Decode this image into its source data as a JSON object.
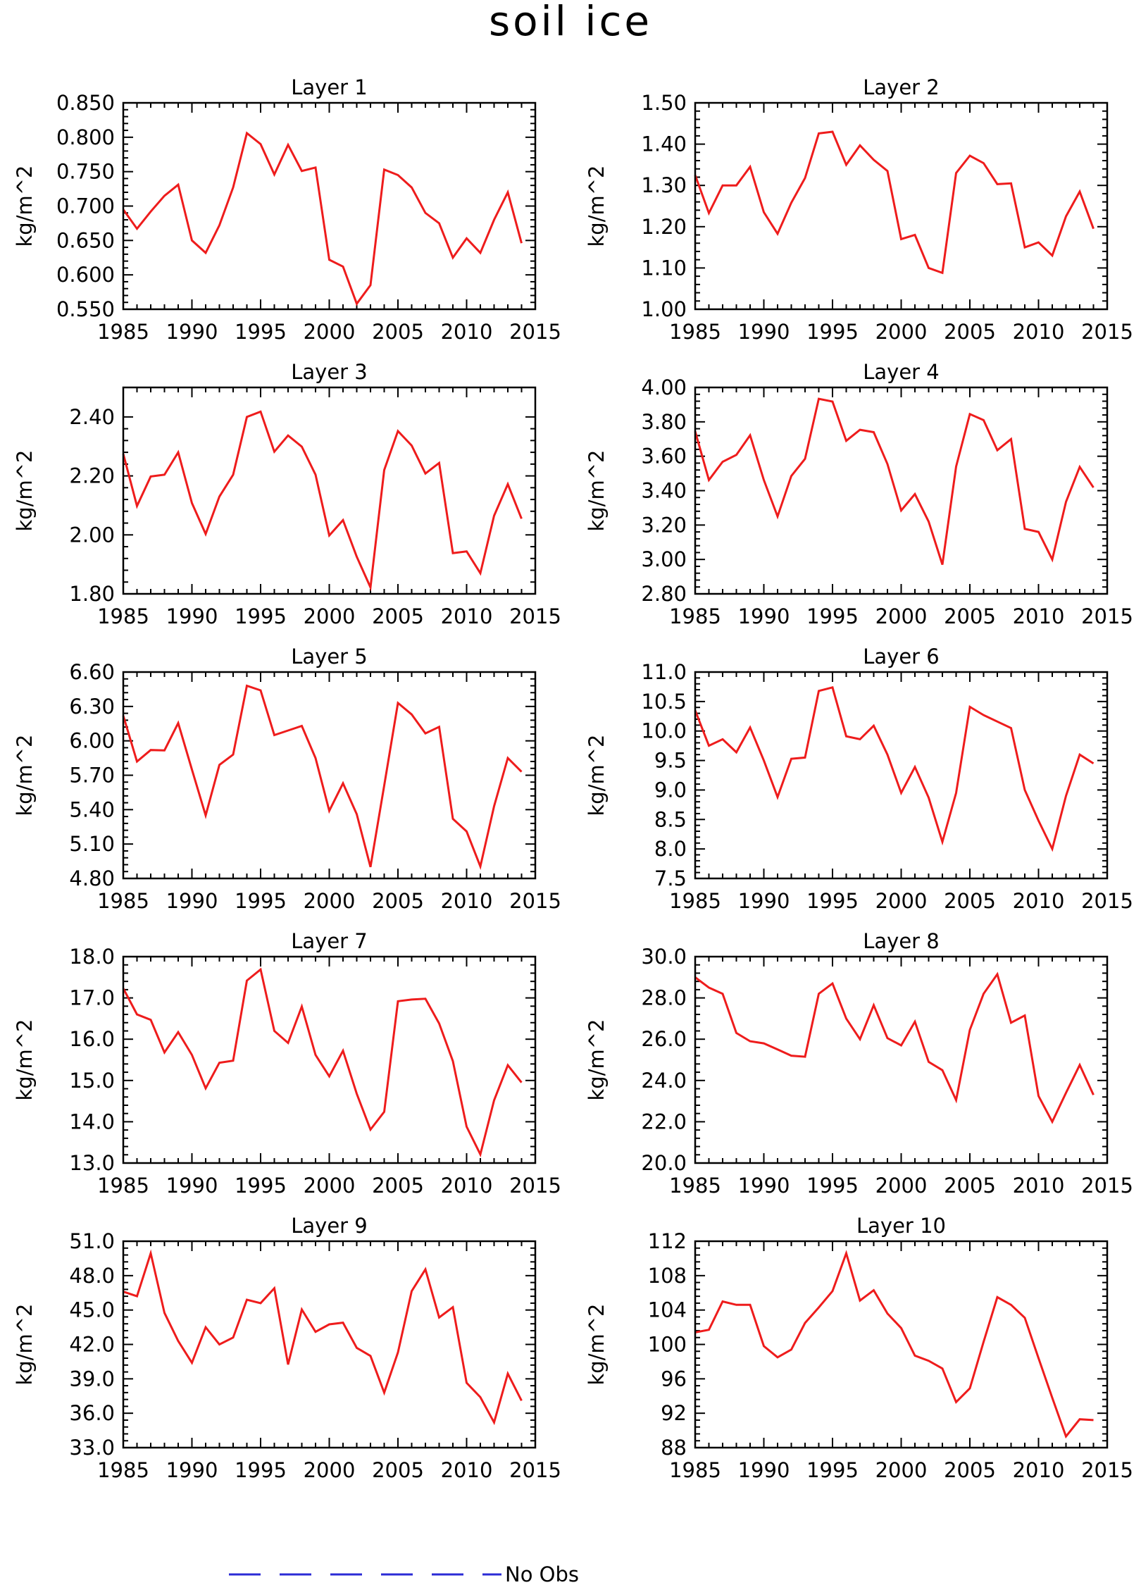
{
  "figure": {
    "title": "soil ice"
  },
  "legend": {
    "label": "No Obs",
    "line_color": "#2b2bd6",
    "line_style": "dashed"
  },
  "style": {
    "series_color": "#ee1c1c"
  },
  "chart_data": [
    {
      "type": "line",
      "title": "Layer 1",
      "ylabel": "kg/m^2",
      "xlim": [
        1985,
        2015
      ],
      "ylim": [
        0.55,
        0.85
      ],
      "xticks": [
        1985,
        1990,
        1995,
        2000,
        2005,
        2010,
        2015
      ],
      "xtick_labels": [
        "1985",
        "1990",
        "1995",
        "2000",
        "2005",
        "2010",
        "2015"
      ],
      "yticks": [
        0.55,
        0.6,
        0.65,
        0.7,
        0.75,
        0.8,
        0.85
      ],
      "ytick_labels": [
        "0.550",
        "0.600",
        "0.650",
        "0.700",
        "0.750",
        "0.800",
        "0.850"
      ],
      "x": [
        1985,
        1986,
        1987,
        1988,
        1989,
        1990,
        1991,
        1992,
        1993,
        1994,
        1995,
        1996,
        1997,
        1998,
        1999,
        2000,
        2001,
        2002,
        2003,
        2004,
        2005,
        2006,
        2007,
        2008,
        2009,
        2010,
        2011,
        2012,
        2013,
        2014
      ],
      "values": [
        0.695,
        0.667,
        0.692,
        0.715,
        0.731,
        0.65,
        0.632,
        0.672,
        0.727,
        0.806,
        0.79,
        0.746,
        0.789,
        0.751,
        0.756,
        0.622,
        0.612,
        0.558,
        0.585,
        0.753,
        0.745,
        0.727,
        0.69,
        0.675,
        0.625,
        0.653,
        0.632,
        0.68,
        0.72,
        0.646
      ]
    },
    {
      "type": "line",
      "title": "Layer 2",
      "ylabel": "kg/m^2",
      "xlim": [
        1985,
        2015
      ],
      "ylim": [
        1.0,
        1.5
      ],
      "xticks": [
        1985,
        1990,
        1995,
        2000,
        2005,
        2010,
        2015
      ],
      "xtick_labels": [
        "1985",
        "1990",
        "1995",
        "2000",
        "2005",
        "2010",
        "2015"
      ],
      "yticks": [
        1.0,
        1.1,
        1.2,
        1.3,
        1.4,
        1.5
      ],
      "ytick_labels": [
        "1.00",
        "1.10",
        "1.20",
        "1.30",
        "1.40",
        "1.50"
      ],
      "x": [
        1985,
        1986,
        1987,
        1988,
        1989,
        1990,
        1991,
        1992,
        1993,
        1994,
        1995,
        1996,
        1997,
        1998,
        1999,
        2000,
        2001,
        2002,
        2003,
        2004,
        2005,
        2006,
        2007,
        2008,
        2009,
        2010,
        2011,
        2012,
        2013,
        2014
      ],
      "values": [
        1.325,
        1.233,
        1.3,
        1.3,
        1.345,
        1.235,
        1.183,
        1.258,
        1.318,
        1.426,
        1.43,
        1.35,
        1.397,
        1.362,
        1.335,
        1.17,
        1.18,
        1.1,
        1.088,
        1.33,
        1.372,
        1.354,
        1.303,
        1.305,
        1.15,
        1.162,
        1.13,
        1.225,
        1.285,
        1.195
      ]
    },
    {
      "type": "line",
      "title": "Layer 3",
      "ylabel": "kg/m^2",
      "xlim": [
        1985,
        2015
      ],
      "ylim": [
        1.8,
        2.5
      ],
      "xticks": [
        1985,
        1990,
        1995,
        2000,
        2005,
        2010,
        2015
      ],
      "xtick_labels": [
        "1985",
        "1990",
        "1995",
        "2000",
        "2005",
        "2010",
        "2015"
      ],
      "yticks": [
        1.8,
        2.0,
        2.2,
        2.4
      ],
      "ytick_labels": [
        "1.80",
        "2.00",
        "2.20",
        "2.40"
      ],
      "x": [
        1985,
        1986,
        1987,
        1988,
        1989,
        1990,
        1991,
        1992,
        1993,
        1994,
        1995,
        1996,
        1997,
        1998,
        1999,
        2000,
        2001,
        2002,
        2003,
        2004,
        2005,
        2006,
        2007,
        2008,
        2009,
        2010,
        2011,
        2012,
        2013,
        2014
      ],
      "values": [
        2.275,
        2.098,
        2.198,
        2.204,
        2.28,
        2.108,
        2.003,
        2.13,
        2.204,
        2.4,
        2.418,
        2.282,
        2.337,
        2.299,
        2.204,
        1.998,
        2.05,
        1.926,
        1.822,
        2.22,
        2.352,
        2.303,
        2.208,
        2.244,
        1.938,
        1.944,
        1.87,
        2.065,
        2.172,
        2.055
      ]
    },
    {
      "type": "line",
      "title": "Layer 4",
      "ylabel": "kg/m^2",
      "xlim": [
        1985,
        2015
      ],
      "ylim": [
        2.8,
        4.0
      ],
      "xticks": [
        1985,
        1990,
        1995,
        2000,
        2005,
        2010,
        2015
      ],
      "xtick_labels": [
        "1985",
        "1990",
        "1995",
        "2000",
        "2005",
        "2010",
        "2015"
      ],
      "yticks": [
        2.8,
        3.0,
        3.2,
        3.4,
        3.6,
        3.8,
        4.0
      ],
      "ytick_labels": [
        "2.80",
        "3.00",
        "3.20",
        "3.40",
        "3.60",
        "3.80",
        "4.00"
      ],
      "x": [
        1985,
        1986,
        1987,
        1988,
        1989,
        1990,
        1991,
        1992,
        1993,
        1994,
        1995,
        1996,
        1997,
        1998,
        1999,
        2000,
        2001,
        2002,
        2003,
        2004,
        2005,
        2006,
        2007,
        2008,
        2009,
        2010,
        2011,
        2012,
        2013,
        2014
      ],
      "values": [
        3.745,
        3.462,
        3.568,
        3.608,
        3.722,
        3.462,
        3.25,
        3.485,
        3.585,
        3.934,
        3.918,
        3.69,
        3.754,
        3.74,
        3.555,
        3.285,
        3.38,
        3.22,
        2.97,
        3.54,
        3.845,
        3.81,
        3.635,
        3.7,
        3.178,
        3.16,
        3.0,
        3.335,
        3.538,
        3.418
      ]
    },
    {
      "type": "line",
      "title": "Layer 5",
      "ylabel": "kg/m^2",
      "xlim": [
        1985,
        2015
      ],
      "ylim": [
        4.8,
        6.6
      ],
      "xticks": [
        1985,
        1990,
        1995,
        2000,
        2005,
        2010,
        2015
      ],
      "xtick_labels": [
        "1985",
        "1990",
        "1995",
        "2000",
        "2005",
        "2010",
        "2015"
      ],
      "yticks": [
        4.8,
        5.1,
        5.4,
        5.7,
        6.0,
        6.3,
        6.6
      ],
      "ytick_labels": [
        "4.80",
        "5.10",
        "5.40",
        "5.70",
        "6.00",
        "6.30",
        "6.60"
      ],
      "x": [
        1985,
        1986,
        1987,
        1988,
        1989,
        1990,
        1991,
        1992,
        1993,
        1994,
        1995,
        1996,
        1997,
        1998,
        1999,
        2000,
        2001,
        2002,
        2003,
        2004,
        2005,
        2006,
        2007,
        2008,
        2009,
        2010,
        2011,
        2012,
        2013,
        2014
      ],
      "values": [
        6.22,
        5.82,
        5.92,
        5.917,
        6.155,
        5.75,
        5.35,
        5.79,
        5.88,
        6.48,
        6.44,
        6.05,
        6.09,
        6.13,
        5.85,
        5.39,
        5.63,
        5.36,
        4.9,
        5.61,
        6.33,
        6.23,
        6.065,
        6.122,
        5.32,
        5.21,
        4.905,
        5.43,
        5.85,
        5.73
      ]
    },
    {
      "type": "line",
      "title": "Layer 6",
      "ylabel": "kg/m^2",
      "xlim": [
        1985,
        2015
      ],
      "ylim": [
        7.5,
        11.0
      ],
      "xticks": [
        1985,
        1990,
        1995,
        2000,
        2005,
        2010,
        2015
      ],
      "xtick_labels": [
        "1985",
        "1990",
        "1995",
        "2000",
        "2005",
        "2010",
        "2015"
      ],
      "yticks": [
        7.5,
        8.0,
        8.5,
        9.0,
        9.5,
        10.0,
        10.5,
        11.0
      ],
      "ytick_labels": [
        "7.5",
        "8.0",
        "8.5",
        "9.0",
        "9.5",
        "10.0",
        "10.5",
        "11.0"
      ],
      "x": [
        1985,
        1986,
        1987,
        1988,
        1989,
        1990,
        1991,
        1992,
        1993,
        1994,
        1995,
        1996,
        1997,
        1998,
        1999,
        2000,
        2001,
        2002,
        2003,
        2004,
        2005,
        2006,
        2007,
        2008,
        2009,
        2010,
        2011,
        2012,
        2013,
        2014
      ],
      "values": [
        10.35,
        9.75,
        9.86,
        9.64,
        10.06,
        9.5,
        8.88,
        9.53,
        9.55,
        10.68,
        10.74,
        9.91,
        9.86,
        10.09,
        9.6,
        8.95,
        9.39,
        8.87,
        8.12,
        8.95,
        10.41,
        10.27,
        10.16,
        10.05,
        9.0,
        8.48,
        8.0,
        8.9,
        9.6,
        9.45
      ]
    },
    {
      "type": "line",
      "title": "Layer 7",
      "ylabel": "kg/m^2",
      "xlim": [
        1985,
        2015
      ],
      "ylim": [
        13.0,
        18.0
      ],
      "xticks": [
        1985,
        1990,
        1995,
        2000,
        2005,
        2010,
        2015
      ],
      "xtick_labels": [
        "1985",
        "1990",
        "1995",
        "2000",
        "2005",
        "2010",
        "2015"
      ],
      "yticks": [
        13.0,
        14.0,
        15.0,
        16.0,
        17.0,
        18.0
      ],
      "ytick_labels": [
        "13.0",
        "14.0",
        "15.0",
        "16.0",
        "17.0",
        "18.0"
      ],
      "x": [
        1985,
        1986,
        1987,
        1988,
        1989,
        1990,
        1991,
        1992,
        1993,
        1994,
        1995,
        1996,
        1997,
        1998,
        1999,
        2000,
        2001,
        2002,
        2003,
        2004,
        2005,
        2006,
        2007,
        2008,
        2009,
        2010,
        2011,
        2012,
        2013,
        2014
      ],
      "values": [
        17.23,
        16.6,
        16.47,
        15.68,
        16.17,
        15.62,
        14.81,
        15.43,
        15.48,
        17.42,
        17.69,
        16.2,
        15.91,
        16.79,
        15.62,
        15.1,
        15.72,
        14.68,
        13.81,
        14.24,
        16.92,
        16.96,
        16.98,
        16.38,
        15.47,
        13.88,
        13.21,
        14.52,
        15.37,
        14.95
      ]
    },
    {
      "type": "line",
      "title": "Layer 8",
      "ylabel": "kg/m^2",
      "xlim": [
        1985,
        2015
      ],
      "ylim": [
        20.0,
        30.0
      ],
      "xticks": [
        1985,
        1990,
        1995,
        2000,
        2005,
        2010,
        2015
      ],
      "xtick_labels": [
        "1985",
        "1990",
        "1995",
        "2000",
        "2005",
        "2010",
        "2015"
      ],
      "yticks": [
        20.0,
        22.0,
        24.0,
        26.0,
        28.0,
        30.0
      ],
      "ytick_labels": [
        "20.0",
        "22.0",
        "24.0",
        "26.0",
        "28.0",
        "30.0"
      ],
      "x": [
        1985,
        1986,
        1987,
        1988,
        1989,
        1990,
        1991,
        1992,
        1993,
        1994,
        1995,
        1996,
        1997,
        1998,
        1999,
        2000,
        2001,
        2002,
        2003,
        2004,
        2005,
        2006,
        2007,
        2008,
        2009,
        2010,
        2011,
        2012,
        2013,
        2014
      ],
      "values": [
        29.0,
        28.5,
        28.2,
        26.3,
        25.9,
        25.8,
        25.5,
        25.2,
        25.15,
        28.2,
        28.7,
        27.0,
        26.0,
        27.65,
        26.05,
        25.7,
        26.85,
        24.9,
        24.5,
        23.05,
        26.45,
        28.2,
        29.15,
        26.8,
        27.15,
        23.25,
        22.0,
        23.4,
        24.75,
        23.3
      ]
    },
    {
      "type": "line",
      "title": "Layer 9",
      "ylabel": "kg/m^2",
      "xlim": [
        1985,
        2015
      ],
      "ylim": [
        33.0,
        51.0
      ],
      "xticks": [
        1985,
        1990,
        1995,
        2000,
        2005,
        2010,
        2015
      ],
      "xtick_labels": [
        "1985",
        "1990",
        "1995",
        "2000",
        "2005",
        "2010",
        "2015"
      ],
      "yticks": [
        33.0,
        36.0,
        39.0,
        42.0,
        45.0,
        48.0,
        51.0
      ],
      "ytick_labels": [
        "33.0",
        "36.0",
        "39.0",
        "42.0",
        "45.0",
        "48.0",
        "51.0"
      ],
      "x": [
        1985,
        1986,
        1987,
        1988,
        1989,
        1990,
        1991,
        1992,
        1993,
        1994,
        1995,
        1996,
        1997,
        1998,
        1999,
        2000,
        2001,
        2002,
        2003,
        2004,
        2005,
        2006,
        2007,
        2008,
        2009,
        2010,
        2011,
        2012,
        2013,
        2014
      ],
      "values": [
        46.6,
        46.2,
        49.95,
        44.75,
        42.3,
        40.4,
        43.5,
        42.0,
        42.6,
        45.9,
        45.6,
        46.9,
        40.25,
        45.05,
        43.1,
        43.75,
        43.9,
        41.7,
        41.0,
        37.8,
        41.3,
        46.65,
        48.55,
        44.35,
        45.25,
        38.65,
        37.4,
        35.2,
        39.45,
        37.1
      ]
    },
    {
      "type": "line",
      "title": "Layer 10",
      "ylabel": "kg/m^2",
      "xlim": [
        1985,
        2015
      ],
      "ylim": [
        88,
        112
      ],
      "xticks": [
        1985,
        1990,
        1995,
        2000,
        2005,
        2010,
        2015
      ],
      "xtick_labels": [
        "1985",
        "1990",
        "1995",
        "2000",
        "2005",
        "2010",
        "2015"
      ],
      "yticks": [
        88,
        92,
        96,
        100,
        104,
        108,
        112
      ],
      "ytick_labels": [
        "88",
        "92",
        "96",
        "100",
        "104",
        "108",
        "112"
      ],
      "x": [
        1985,
        1986,
        1987,
        1988,
        1989,
        1990,
        1991,
        1992,
        1993,
        1994,
        1995,
        1996,
        1997,
        1998,
        1999,
        2000,
        2001,
        2002,
        2003,
        2004,
        2005,
        2006,
        2007,
        2008,
        2009,
        2010,
        2011,
        2012,
        2013,
        2014
      ],
      "values": [
        101.4,
        101.7,
        105.0,
        104.6,
        104.6,
        99.8,
        98.5,
        99.4,
        102.5,
        104.3,
        106.2,
        110.6,
        105.1,
        106.3,
        103.6,
        101.9,
        98.7,
        98.1,
        97.2,
        93.3,
        94.9,
        100.3,
        105.5,
        104.6,
        103.1,
        98.4,
        93.8,
        89.3,
        91.3,
        91.2
      ]
    }
  ]
}
